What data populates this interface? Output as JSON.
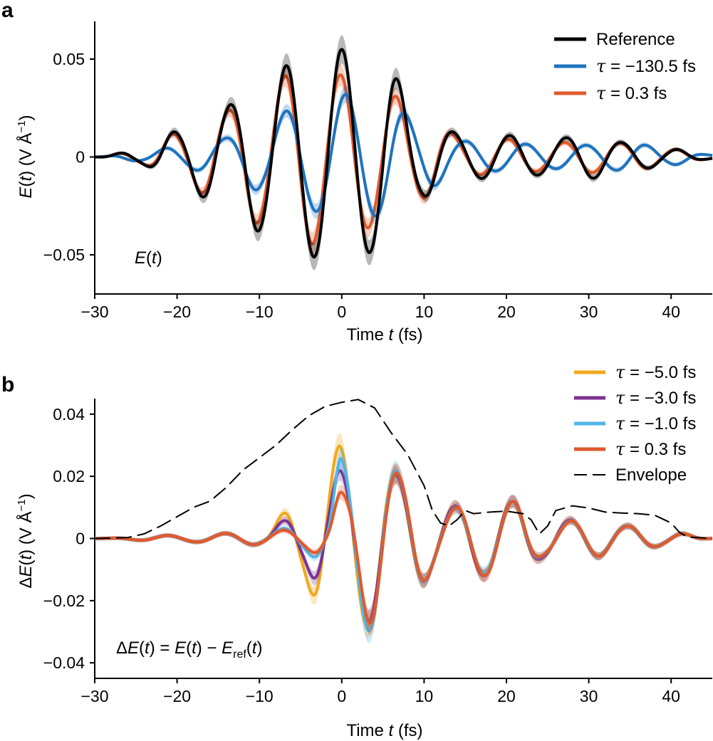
{
  "chart_data": [
    {
      "panel_label": "a",
      "type": "line",
      "xlabel_parts": [
        "Time ",
        "t",
        " (fs)"
      ],
      "ylabel_parts": [
        "E",
        "(",
        "t",
        ") (V Å",
        "−1",
        ")"
      ],
      "xlim": [
        -30,
        45
      ],
      "ylim": [
        -0.07,
        0.07
      ],
      "x_ticks": [
        -30,
        -20,
        -10,
        0,
        10,
        20,
        30,
        40
      ],
      "x_tick_labels": [
        "−30",
        "−20",
        "−10",
        "0",
        "10",
        "20",
        "30",
        "40"
      ],
      "y_ticks": [
        0.05,
        0,
        -0.05
      ],
      "y_tick_labels": [
        "0.05",
        "0",
        "−0.05"
      ],
      "annotation_parts": [
        "E",
        "(",
        "t",
        ")"
      ],
      "legend_position": "top-right",
      "series": [
        {
          "name": "Reference",
          "legend_prefix": "",
          "legend_value": "Reference",
          "color": "#000000",
          "style": "solid",
          "shaded": true,
          "envelope": [
            [
              -30,
              0
            ],
            [
              -25,
              0.003
            ],
            [
              -20,
              0.013
            ],
            [
              -15,
              0.024
            ],
            [
              -10,
              0.038
            ],
            [
              -5,
              0.05
            ],
            [
              0,
              0.055
            ],
            [
              5,
              0.047
            ],
            [
              10,
              0.02
            ],
            [
              15,
              0.011
            ],
            [
              20,
              0.011
            ],
            [
              25,
              0.009
            ],
            [
              30,
              0.011
            ],
            [
              35,
              0.007
            ],
            [
              40,
              0.004
            ],
            [
              45,
              0.001
            ]
          ],
          "period": 6.8,
          "phase": 0
        },
        {
          "name": "τ = −130.5 fs",
          "legend_prefix": "τ",
          "legend_value": " = −130.5 fs",
          "color": "#1E73BE",
          "style": "solid",
          "shaded": true,
          "envelope": [
            [
              -30,
              0
            ],
            [
              -25,
              0.002
            ],
            [
              -20,
              0.005
            ],
            [
              -15,
              0.009
            ],
            [
              -10,
              0.017
            ],
            [
              -5,
              0.026
            ],
            [
              0,
              0.032
            ],
            [
              5,
              0.03
            ],
            [
              10,
              0.016
            ],
            [
              15,
              0.008
            ],
            [
              20,
              0.007
            ],
            [
              25,
              0.006
            ],
            [
              30,
              0.006
            ],
            [
              35,
              0.007
            ],
            [
              40,
              0.004
            ],
            [
              45,
              0.001
            ]
          ],
          "period": 7.3,
          "phase": -0.4
        },
        {
          "name": "τ = 0.3 fs",
          "legend_prefix": "τ",
          "legend_value": " = 0.3 fs",
          "color": "#E05A2B",
          "style": "solid",
          "shaded": true,
          "envelope": [
            [
              -30,
              0
            ],
            [
              -25,
              0.003
            ],
            [
              -20,
              0.012
            ],
            [
              -15,
              0.022
            ],
            [
              -10,
              0.034
            ],
            [
              -5,
              0.045
            ],
            [
              0,
              0.042
            ],
            [
              5,
              0.034
            ],
            [
              10,
              0.021
            ],
            [
              15,
              0.009
            ],
            [
              20,
              0.009
            ],
            [
              25,
              0.007
            ],
            [
              30,
              0.008
            ],
            [
              35,
              0.007
            ],
            [
              40,
              0.004
            ],
            [
              45,
              0.001
            ]
          ],
          "period": 6.8,
          "phase": 0.15
        }
      ]
    },
    {
      "panel_label": "b",
      "type": "line",
      "xlabel_parts": [
        "Time ",
        "t",
        " (fs)"
      ],
      "ylabel_parts": [
        "Δ",
        "E",
        "(",
        "t",
        ") (V Å",
        "−1",
        ")"
      ],
      "xlim": [
        -30,
        45
      ],
      "ylim": [
        -0.045,
        0.045
      ],
      "x_ticks": [
        -30,
        -20,
        -10,
        0,
        10,
        20,
        30,
        40
      ],
      "x_tick_labels": [
        "−30",
        "−20",
        "−10",
        "0",
        "10",
        "20",
        "30",
        "40"
      ],
      "y_ticks": [
        0.04,
        0.02,
        0,
        -0.02,
        -0.04
      ],
      "y_tick_labels": [
        "0.04",
        "0.02",
        "0",
        "−0.02",
        "−0.04"
      ],
      "annotation_parts": [
        "Δ",
        "E",
        "(",
        "t",
        ") = ",
        "E",
        "(",
        "t",
        ") − ",
        "E",
        "ref",
        "(",
        "t",
        ")"
      ],
      "legend_position": "top-right",
      "series": [
        {
          "name": "τ = −5.0 fs",
          "legend_prefix": "τ",
          "legend_value": " = −5.0 fs",
          "color": "#F2A81D",
          "style": "solid",
          "shaded": true,
          "envelope": [
            [
              -30,
              0
            ],
            [
              -20,
              0.001
            ],
            [
              -10,
              0.002
            ],
            [
              -5,
              0.012
            ],
            [
              -2,
              0.026
            ],
            [
              0,
              0.03
            ],
            [
              4,
              0.028
            ],
            [
              8,
              0.018
            ],
            [
              12,
              0.01
            ],
            [
              17,
              0.012
            ],
            [
              21,
              0.012
            ],
            [
              25,
              0.006
            ],
            [
              30,
              0.006
            ],
            [
              35,
              0.004
            ],
            [
              40,
              0.002
            ],
            [
              45,
              0
            ]
          ],
          "period": 7.0,
          "phase": 0.3
        },
        {
          "name": "τ = −3.0 fs",
          "legend_prefix": "τ",
          "legend_value": " = −3.0 fs",
          "color": "#7B3294",
          "style": "solid",
          "shaded": true,
          "envelope": [
            [
              -30,
              0
            ],
            [
              -20,
              0.001
            ],
            [
              -10,
              0.002
            ],
            [
              -5,
              0.008
            ],
            [
              -2,
              0.018
            ],
            [
              0,
              0.022
            ],
            [
              4,
              0.027
            ],
            [
              8,
              0.018
            ],
            [
              12,
              0.01
            ],
            [
              17,
              0.012
            ],
            [
              21,
              0.012
            ],
            [
              25,
              0.006
            ],
            [
              30,
              0.006
            ],
            [
              35,
              0.004
            ],
            [
              40,
              0.002
            ],
            [
              45,
              0
            ]
          ],
          "period": 7.0,
          "phase": 0.25
        },
        {
          "name": "τ = −1.0 fs",
          "legend_prefix": "τ",
          "legend_value": " = −1.0 fs",
          "color": "#4FB6E8",
          "style": "solid",
          "shaded": true,
          "envelope": [
            [
              -30,
              0
            ],
            [
              -20,
              0.001
            ],
            [
              -10,
              0.002
            ],
            [
              -5,
              0.004
            ],
            [
              -2,
              0.008
            ],
            [
              0,
              0.026
            ],
            [
              4,
              0.03
            ],
            [
              8,
              0.019
            ],
            [
              12,
              0.009
            ],
            [
              17,
              0.011
            ],
            [
              21,
              0.012
            ],
            [
              25,
              0.005
            ],
            [
              30,
              0.006
            ],
            [
              35,
              0.004
            ],
            [
              40,
              0.002
            ],
            [
              45,
              0
            ]
          ],
          "period": 7.0,
          "phase": 0.2
        },
        {
          "name": "τ = 0.3 fs",
          "legend_prefix": "τ",
          "legend_value": " = 0.3 fs",
          "color": "#E05A2B",
          "style": "solid",
          "shaded": true,
          "envelope": [
            [
              -30,
              0
            ],
            [
              -20,
              0.001
            ],
            [
              -10,
              0.002
            ],
            [
              -5,
              0.003
            ],
            [
              -2,
              0.006
            ],
            [
              0,
              0.015
            ],
            [
              4,
              0.028
            ],
            [
              8,
              0.019
            ],
            [
              12,
              0.009
            ],
            [
              17,
              0.012
            ],
            [
              21,
              0.012
            ],
            [
              25,
              0.005
            ],
            [
              30,
              0.006
            ],
            [
              35,
              0.004
            ],
            [
              40,
              0.002
            ],
            [
              45,
              0
            ]
          ],
          "period": 7.0,
          "phase": 0.15
        },
        {
          "name": "Envelope",
          "legend_prefix": "",
          "legend_value": "Envelope",
          "color": "#000000",
          "style": "dashed",
          "shaded": false,
          "points": [
            [
              -30,
              0
            ],
            [
              -26,
              0.0003
            ],
            [
              -24,
              0.0015
            ],
            [
              -22,
              0.004
            ],
            [
              -20,
              0.007
            ],
            [
              -18,
              0.01
            ],
            [
              -16,
              0.012
            ],
            [
              -14,
              0.0165
            ],
            [
              -12,
              0.022
            ],
            [
              -10,
              0.026
            ],
            [
              -8,
              0.03
            ],
            [
              -6,
              0.035
            ],
            [
              -4,
              0.0395
            ],
            [
              -2,
              0.0425
            ],
            [
              0,
              0.0438
            ],
            [
              2,
              0.0447
            ],
            [
              4,
              0.042
            ],
            [
              6,
              0.034
            ],
            [
              8,
              0.027
            ],
            [
              10,
              0.017
            ],
            [
              11,
              0.009
            ],
            [
              12,
              0.005
            ],
            [
              13,
              0.004
            ],
            [
              14,
              0.006
            ],
            [
              15,
              0.009
            ],
            [
              16,
              0.008
            ],
            [
              18,
              0.0085
            ],
            [
              20,
              0.0088
            ],
            [
              22,
              0.008
            ],
            [
              23,
              0.006
            ],
            [
              24,
              0.0015
            ],
            [
              25,
              0.004
            ],
            [
              26,
              0.009
            ],
            [
              28,
              0.0105
            ],
            [
              30,
              0.0098
            ],
            [
              32,
              0.0085
            ],
            [
              34,
              0.0082
            ],
            [
              36,
              0.008
            ],
            [
              38,
              0.0075
            ],
            [
              40,
              0.005
            ],
            [
              41,
              0.002
            ],
            [
              42,
              0.0005
            ],
            [
              45,
              0
            ]
          ]
        }
      ]
    }
  ]
}
